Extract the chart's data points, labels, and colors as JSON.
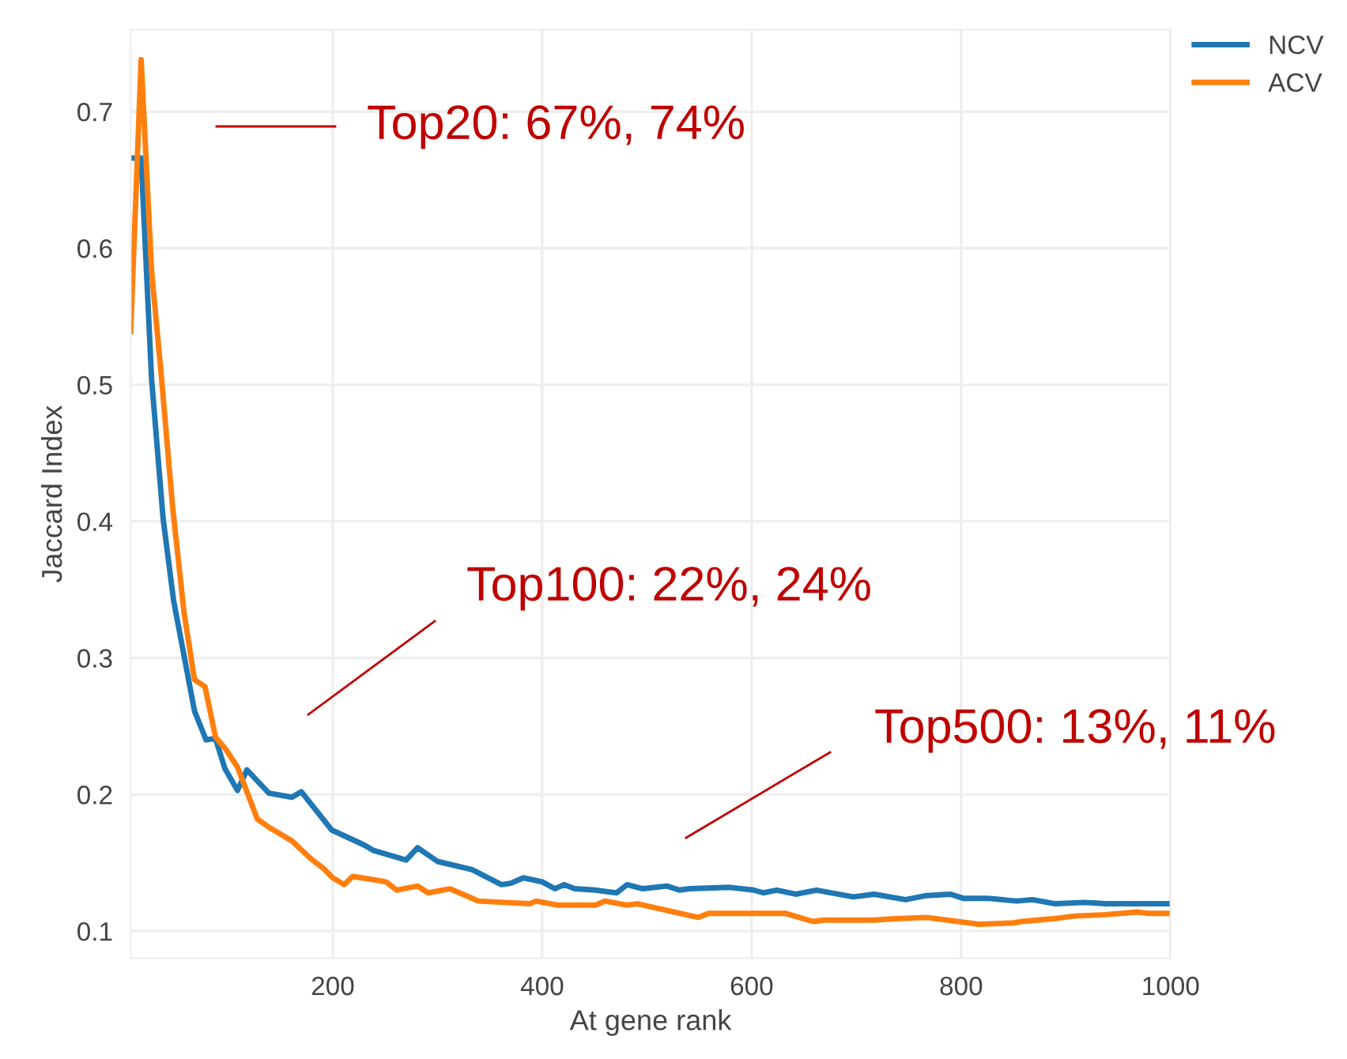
{
  "chart_data": {
    "type": "line",
    "xlabel": "At gene rank",
    "ylabel": "Jaccard Index",
    "xlim": [
      7,
      1000
    ],
    "ylim": [
      0.08,
      0.76
    ],
    "xticks": [
      200,
      400,
      600,
      800,
      1000
    ],
    "yticks": [
      0.1,
      0.2,
      0.3,
      0.4,
      0.5,
      0.6,
      0.7
    ],
    "grid": true,
    "legend": "top right",
    "marker": "none",
    "line_style": "solid",
    "series": [
      {
        "name": "NCV",
        "color": "#1f77b4",
        "x": [
          7,
          17,
          27,
          38,
          48,
          68,
          79,
          88,
          97,
          109,
          118,
          139,
          161,
          170,
          199,
          230,
          239,
          270,
          281,
          300,
          333,
          361,
          370,
          382,
          400,
          412,
          421,
          431,
          451,
          471,
          481,
          496,
          519,
          531,
          541,
          579,
          602,
          611,
          624,
          642,
          662,
          697,
          717,
          747,
          767,
          790,
          802,
          825,
          853,
          868,
          890,
          918,
          938,
          1000
        ],
        "values": [
          0.666,
          0.666,
          0.504,
          0.402,
          0.342,
          0.261,
          0.24,
          0.241,
          0.219,
          0.203,
          0.218,
          0.201,
          0.198,
          0.202,
          0.174,
          0.163,
          0.159,
          0.152,
          0.161,
          0.151,
          0.145,
          0.134,
          0.135,
          0.139,
          0.136,
          0.131,
          0.134,
          0.131,
          0.13,
          0.128,
          0.134,
          0.131,
          0.133,
          0.13,
          0.131,
          0.132,
          0.13,
          0.128,
          0.13,
          0.127,
          0.13,
          0.125,
          0.127,
          0.123,
          0.126,
          0.127,
          0.124,
          0.124,
          0.122,
          0.123,
          0.12,
          0.121,
          0.12,
          0.12
        ]
      },
      {
        "name": "ACV",
        "color": "#ff7f0e",
        "x": [
          7,
          17,
          27,
          36,
          47,
          58,
          68,
          78,
          88,
          98,
          109,
          128,
          139,
          161,
          179,
          191,
          200,
          211,
          219,
          236,
          251,
          261,
          281,
          291,
          312,
          321,
          339,
          364,
          388,
          394,
          415,
          429,
          451,
          460,
          481,
          491,
          549,
          559,
          632,
          659,
          669,
          717,
          737,
          767,
          817,
          850,
          858,
          888,
          908,
          938,
          968,
          978,
          1000
        ],
        "values": [
          0.539,
          0.738,
          0.583,
          0.509,
          0.411,
          0.333,
          0.284,
          0.279,
          0.242,
          0.233,
          0.22,
          0.182,
          0.176,
          0.166,
          0.153,
          0.146,
          0.139,
          0.134,
          0.14,
          0.138,
          0.136,
          0.13,
          0.133,
          0.128,
          0.131,
          0.128,
          0.122,
          0.121,
          0.12,
          0.122,
          0.119,
          0.119,
          0.119,
          0.122,
          0.119,
          0.12,
          0.11,
          0.113,
          0.113,
          0.107,
          0.108,
          0.108,
          0.109,
          0.11,
          0.105,
          0.106,
          0.107,
          0.109,
          0.111,
          0.112,
          0.114,
          0.113,
          0.113
        ]
      }
    ],
    "annotations": [
      "Top20: 67%, 74%",
      "Top100: 22%, 24%",
      "Top500: 13%, 11%"
    ]
  }
}
